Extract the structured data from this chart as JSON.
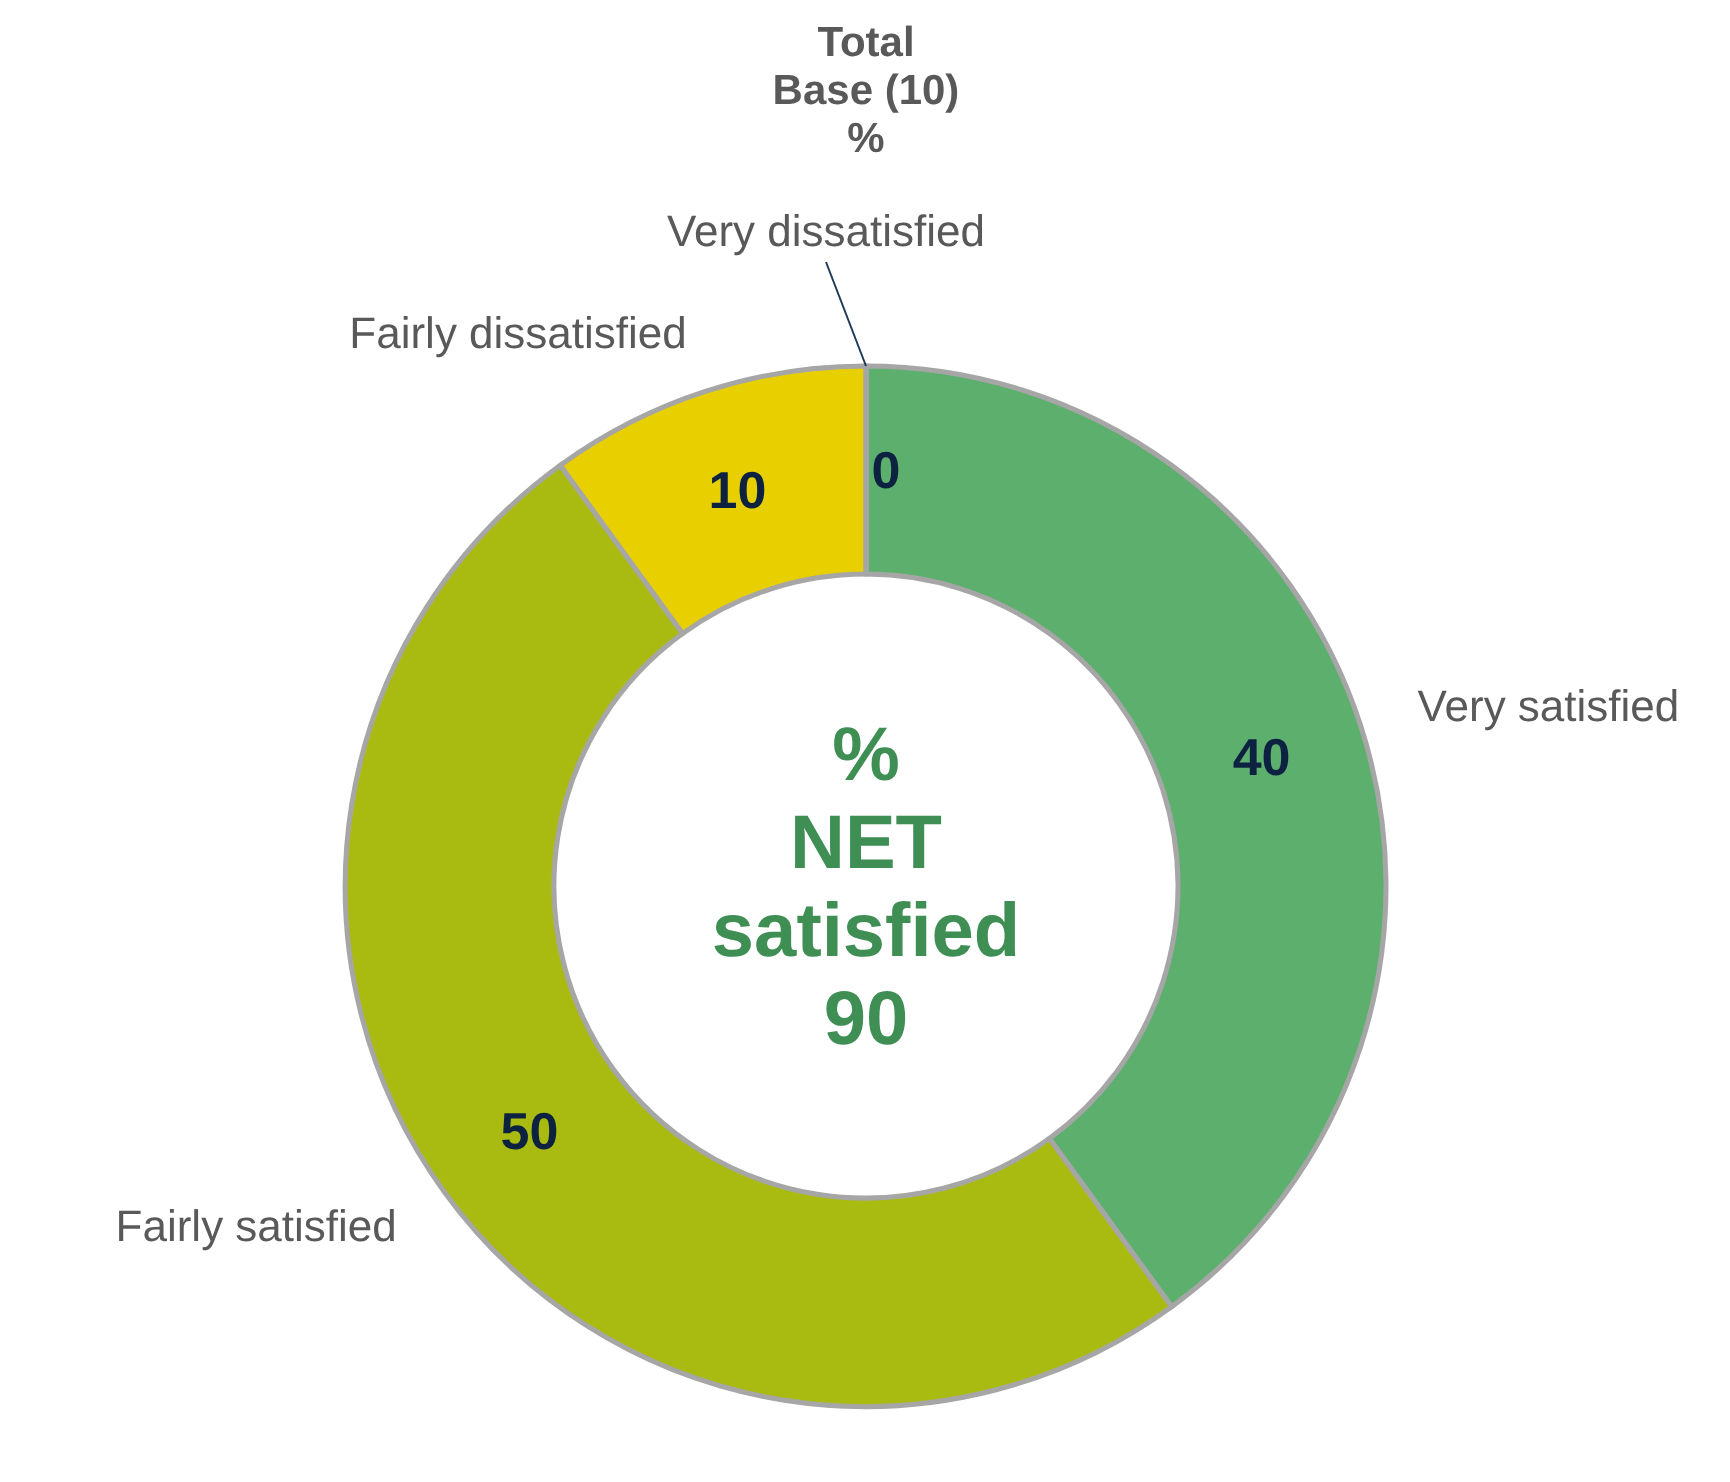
{
  "chart_data": {
    "type": "donut",
    "title": "Total\nBase (10)\n%",
    "categories": [
      "Very satisfied",
      "Fairly satisfied",
      "Fairly dissatisfied",
      "Very dissatisfied"
    ],
    "values": [
      40,
      50,
      10,
      0
    ],
    "colors": [
      "#5daf6e",
      "#a9bb10",
      "#e8d000",
      "#3f7f4a"
    ],
    "value_labels": [
      "40",
      "50",
      "10",
      "0"
    ],
    "annotations": [
      "%\nNET\nsatisfied\n90"
    ]
  }
}
